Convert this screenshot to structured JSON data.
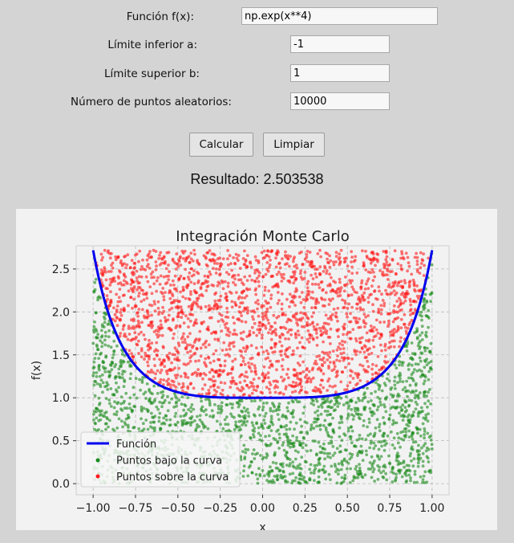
{
  "form": {
    "func_label": "Función f(x):",
    "func_value": "np.exp(x**4)",
    "a_label": "Límite inferior a:",
    "a_value": "-1",
    "b_label": "Límite superior b:",
    "b_value": "1",
    "n_label": "Número de puntos aleatorios:",
    "n_value": "10000"
  },
  "buttons": {
    "calc_label": "Calcular",
    "clear_label": "Limpiar"
  },
  "result": {
    "text": "Resultado: 2.503538"
  },
  "colors": {
    "curve": "#0000ee",
    "under": "#1a8a1a",
    "over": "#ff1a1a",
    "panel": "#f2f2f3"
  },
  "chart_data": {
    "type": "scatter",
    "title": "Integración Monte Carlo",
    "xlabel": "x",
    "ylabel": "f(x)",
    "xlim": [
      -1.1,
      1.1
    ],
    "ylim": [
      -0.13,
      2.77
    ],
    "x_ticks": [
      -1.0,
      -0.75,
      -0.5,
      -0.25,
      0.0,
      0.25,
      0.5,
      0.75,
      1.0
    ],
    "x_tick_labels": [
      "−1.00",
      "−0.75",
      "−0.50",
      "−0.25",
      "0.00",
      "0.25",
      "0.50",
      "0.75",
      "1.00"
    ],
    "y_ticks": [
      0.0,
      0.5,
      1.0,
      1.5,
      2.0,
      2.5
    ],
    "y_tick_labels": [
      "0.0",
      "0.5",
      "1.0",
      "1.5",
      "2.0",
      "2.5"
    ],
    "grid": true,
    "legend_position": "lower-left",
    "function": "np.exp(x**4)",
    "x_range": [
      -1,
      1
    ],
    "y_max": 2.718,
    "n_points": 10000,
    "series": [
      {
        "name": "Función",
        "kind": "line"
      },
      {
        "name": "Puntos bajo la curva",
        "kind": "scatter"
      },
      {
        "name": "Puntos sobre la curva",
        "kind": "scatter"
      }
    ]
  }
}
